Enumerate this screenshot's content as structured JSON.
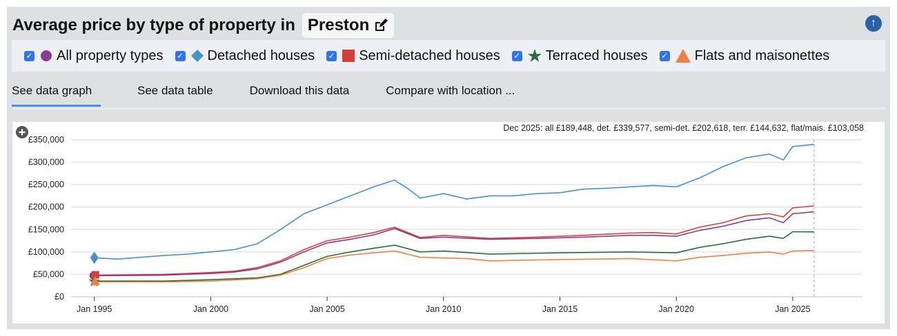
{
  "header": {
    "title": "Average price by type of property in",
    "location": "Preston",
    "edit_icon": "edit-icon",
    "top_icon": "arrow-up-circle-icon"
  },
  "legend": [
    {
      "label": "All property types",
      "marker": "circle",
      "color": "#8b3a8f",
      "checked": true
    },
    {
      "label": "Detached houses",
      "marker": "diamond",
      "color": "#4a90c8",
      "checked": true
    },
    {
      "label": "Semi-detached houses",
      "marker": "square",
      "color": "#d6403c",
      "checked": true
    },
    {
      "label": "Terraced houses",
      "marker": "star",
      "color": "#2e6b3a",
      "checked": true
    },
    {
      "label": "Flats and maisonettes",
      "marker": "triangle",
      "color": "#ec8146",
      "checked": true
    }
  ],
  "tabs": [
    {
      "label": "See data graph",
      "active": true
    },
    {
      "label": "See data table"
    },
    {
      "label": "Download this data"
    },
    {
      "label": "Compare with location ..."
    }
  ],
  "chart_data": {
    "type": "line",
    "summary": "Dec 2025: all £189,448, det. £339,577, semi-det. £202,618, terr. £144,632, flat/mais. £103,058",
    "ylim": [
      0,
      350000
    ],
    "xlim": [
      1994,
      2028
    ],
    "yticks": [
      "£0",
      "£50,000",
      "£100,000",
      "£150,000",
      "£200,000",
      "£250,000",
      "£300,000",
      "£350,000"
    ],
    "ytick_values": [
      0,
      50000,
      100000,
      150000,
      200000,
      250000,
      300000,
      350000
    ],
    "xticks": [
      "Jan 1995",
      "Jan 2000",
      "Jan 2005",
      "Jan 2010",
      "Jan 2015",
      "Jan 2020",
      "Jan 2025"
    ],
    "xtick_values": [
      1995,
      2000,
      2005,
      2010,
      2015,
      2020,
      2025
    ],
    "grid": true,
    "cursor_date": "Dec 2025",
    "series": [
      {
        "name": "Detached houses",
        "color": "#4a90c8",
        "x": [
          1995,
          1996,
          1997,
          1998,
          1999,
          2000,
          2001,
          2002,
          2003,
          2004,
          2005,
          2006,
          2007,
          2007.9,
          2008.5,
          2009,
          2010,
          2011,
          2012,
          2013,
          2014,
          2015,
          2016,
          2017,
          2018,
          2019,
          2020,
          2021,
          2022,
          2023,
          2024,
          2024.6,
          2025,
          2025.92
        ],
        "y": [
          87000,
          84000,
          88000,
          92000,
          95000,
          100000,
          105000,
          118000,
          150000,
          185000,
          205000,
          225000,
          245000,
          260000,
          240000,
          220000,
          230000,
          218000,
          225000,
          225000,
          230000,
          232000,
          240000,
          242000,
          245000,
          248000,
          245000,
          265000,
          290000,
          310000,
          318000,
          305000,
          335000,
          339577
        ]
      },
      {
        "name": "Semi-detached houses",
        "color": "#d6403c",
        "x": [
          1995,
          1998,
          2000,
          2001,
          2002,
          2003,
          2004,
          2005,
          2006,
          2007,
          2007.9,
          2009,
          2010,
          2012,
          2014,
          2016,
          2018,
          2019,
          2020,
          2021,
          2022,
          2023,
          2024,
          2024.6,
          2025,
          2025.92
        ],
        "y": [
          48000,
          50000,
          54000,
          57000,
          65000,
          80000,
          105000,
          125000,
          133000,
          143000,
          155000,
          132000,
          137000,
          130000,
          133000,
          137000,
          142000,
          143000,
          140000,
          155000,
          165000,
          180000,
          185000,
          178000,
          198000,
          202618
        ]
      },
      {
        "name": "All property types",
        "color": "#8b3a8f",
        "x": [
          1995,
          1998,
          2000,
          2001,
          2002,
          2003,
          2004,
          2005,
          2006,
          2007,
          2007.9,
          2009,
          2010,
          2012,
          2014,
          2016,
          2018,
          2019,
          2020,
          2021,
          2022,
          2023,
          2024,
          2024.6,
          2025,
          2025.92
        ],
        "y": [
          47000,
          48000,
          52000,
          55000,
          62000,
          77000,
          100000,
          120000,
          128000,
          138000,
          152000,
          130000,
          133000,
          128000,
          130000,
          133000,
          137000,
          137000,
          135000,
          148000,
          157000,
          170000,
          176000,
          165000,
          185000,
          189448
        ]
      },
      {
        "name": "Terraced houses",
        "color": "#2e6b3a",
        "x": [
          1995,
          1998,
          2000,
          2002,
          2003,
          2004,
          2005,
          2006,
          2007,
          2007.9,
          2009,
          2010,
          2012,
          2015,
          2018,
          2020,
          2021,
          2022,
          2023,
          2024,
          2024.6,
          2025,
          2025.92
        ],
        "y": [
          35000,
          35000,
          38000,
          42000,
          50000,
          70000,
          90000,
          100000,
          108000,
          115000,
          100000,
          102000,
          95000,
          98000,
          100000,
          98000,
          110000,
          118000,
          128000,
          135000,
          130000,
          145000,
          144632
        ]
      },
      {
        "name": "Flats and maisonettes",
        "color": "#ec8146",
        "x": [
          1995,
          1998,
          2000,
          2002,
          2003,
          2004,
          2005,
          2006,
          2007,
          2007.9,
          2009,
          2011,
          2012,
          2015,
          2018,
          2020,
          2021,
          2022,
          2023,
          2024,
          2024.6,
          2025,
          2025.92
        ],
        "y": [
          33000,
          33000,
          35000,
          40000,
          48000,
          65000,
          85000,
          93000,
          98000,
          102000,
          88000,
          85000,
          80000,
          83000,
          85000,
          80000,
          88000,
          92000,
          97000,
          100000,
          95000,
          102000,
          103058
        ]
      }
    ]
  }
}
